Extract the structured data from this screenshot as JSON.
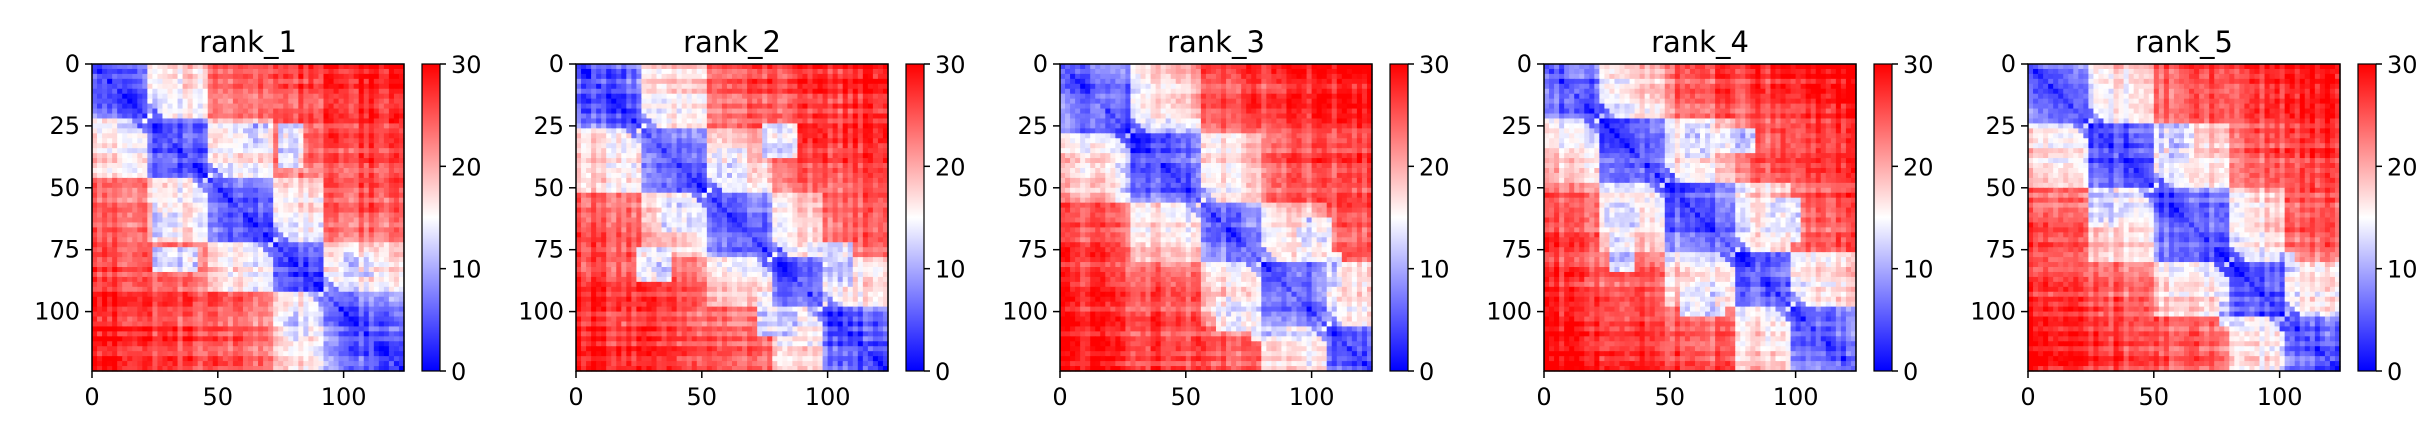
{
  "chart_data": {
    "type": "heatmap",
    "description_scale": {
      "colormap": "bwr",
      "color_low": "#0000ff",
      "color_mid": "#ffffff",
      "color_high": "#ff0000",
      "vmin": 0,
      "vmax": 30,
      "colorbar_ticks": [
        "0",
        "10",
        "20",
        "30"
      ]
    },
    "matrix_size": 124,
    "xlim": [
      0,
      124
    ],
    "ylim": [
      124,
      0
    ],
    "x_ticks": [
      "0",
      "50",
      "100"
    ],
    "y_ticks": [
      "0",
      "25",
      "50",
      "75",
      "100"
    ],
    "panels": [
      {
        "title": "rank_1",
        "domains": [
          [
            0,
            22
          ],
          [
            22,
            45
          ],
          [
            45,
            72
          ],
          [
            72,
            92
          ],
          [
            92,
            124
          ]
        ],
        "contacts": [
          [
            28,
            62,
            6,
            8
          ],
          [
            78,
            32,
            6,
            10
          ],
          [
            80,
            105,
            5,
            6
          ]
        ]
      },
      {
        "title": "rank_2",
        "domains": [
          [
            0,
            25
          ],
          [
            25,
            52
          ],
          [
            52,
            78
          ],
          [
            78,
            98
          ],
          [
            98,
            124
          ]
        ],
        "contacts": [
          [
            40,
            60,
            7,
            8
          ],
          [
            30,
            80,
            8,
            8
          ],
          [
            80,
            100,
            9,
            9
          ]
        ]
      },
      {
        "title": "rank_3",
        "domains": [
          [
            0,
            28
          ],
          [
            28,
            55
          ],
          [
            55,
            80
          ],
          [
            80,
            105
          ],
          [
            105,
            124
          ]
        ],
        "contacts": [
          [
            45,
            28,
            10,
            8
          ],
          [
            100,
            70,
            8,
            10
          ],
          [
            85,
            100,
            10,
            12
          ]
        ]
      },
      {
        "title": "rank_4",
        "domains": [
          [
            0,
            22
          ],
          [
            22,
            48
          ],
          [
            48,
            75
          ],
          [
            75,
            98
          ],
          [
            98,
            124
          ]
        ],
        "contacts": [
          [
            60,
            30,
            6,
            8
          ],
          [
            30,
            75,
            6,
            8
          ],
          [
            95,
            62,
            6,
            10
          ]
        ]
      },
      {
        "title": "rank_5",
        "domains": [
          [
            0,
            24
          ],
          [
            24,
            50
          ],
          [
            50,
            80
          ],
          [
            80,
            102
          ],
          [
            102,
            124
          ]
        ],
        "contacts": [
          [
            55,
            30,
            10,
            8
          ],
          [
            70,
            60,
            8,
            10
          ],
          [
            100,
            80,
            6,
            6
          ]
        ]
      }
    ]
  }
}
